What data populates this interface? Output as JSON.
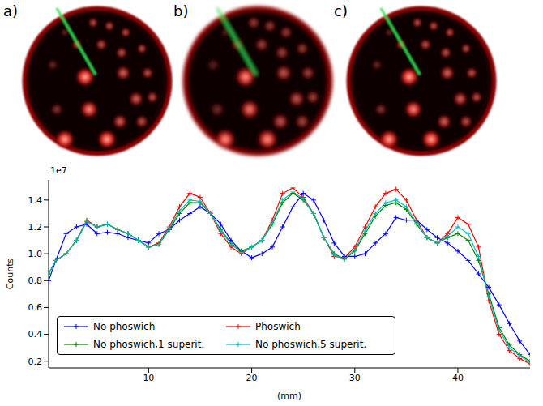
{
  "panels": [
    {
      "label": "a)"
    },
    {
      "label": "b)"
    },
    {
      "label": "c)"
    }
  ],
  "chart_data": {
    "type": "line",
    "x_label": "(mm)",
    "y_label": "Counts",
    "y_offset_text": "1e7",
    "x": [
      0.3,
      1,
      2,
      3,
      4,
      5,
      6,
      7,
      8,
      9,
      10,
      11,
      12,
      13,
      14,
      15,
      16,
      17,
      18,
      19,
      20,
      21,
      22,
      23,
      24,
      25,
      26,
      27,
      28,
      29,
      30,
      31,
      32,
      33,
      34,
      35,
      36,
      37,
      38,
      39,
      40,
      41,
      42,
      43,
      44,
      45,
      46,
      47
    ],
    "xlim": [
      0.3,
      47
    ],
    "xticks": [
      10,
      20,
      30,
      40
    ],
    "ylim": [
      0.15,
      1.55
    ],
    "yticks": [
      0.2,
      0.4,
      0.6,
      0.8,
      1.0,
      1.2,
      1.4
    ],
    "legend": "lower left",
    "grid": false,
    "series": [
      {
        "name": "No phoswich",
        "color": "#0000ff",
        "marker": "plus",
        "values": [
          0.8,
          0.95,
          1.15,
          1.2,
          1.22,
          1.15,
          1.16,
          1.15,
          1.12,
          1.1,
          1.08,
          1.15,
          1.18,
          1.25,
          1.3,
          1.35,
          1.3,
          1.22,
          1.1,
          1.02,
          0.97,
          1.0,
          1.05,
          1.2,
          1.35,
          1.45,
          1.4,
          1.25,
          1.08,
          0.98,
          0.98,
          1.0,
          1.08,
          1.15,
          1.27,
          1.25,
          1.25,
          1.18,
          1.12,
          1.08,
          1.02,
          0.95,
          0.85,
          0.75,
          0.62,
          0.48,
          0.35,
          0.25
        ]
      },
      {
        "name": "Phoswich",
        "color": "#ff0000",
        "marker": "plus",
        "values": [
          0.85,
          0.95,
          1.0,
          1.1,
          1.25,
          1.2,
          1.22,
          1.18,
          1.15,
          1.1,
          1.05,
          1.08,
          1.2,
          1.35,
          1.45,
          1.42,
          1.3,
          1.15,
          1.05,
          1.0,
          1.05,
          1.1,
          1.25,
          1.45,
          1.49,
          1.42,
          1.3,
          1.12,
          0.98,
          0.97,
          1.05,
          1.2,
          1.35,
          1.45,
          1.48,
          1.4,
          1.25,
          1.12,
          1.08,
          1.15,
          1.27,
          1.22,
          1.05,
          0.65,
          0.4,
          0.28,
          0.22,
          0.18
        ]
      },
      {
        "name": "No phoswich,1 superit.",
        "color": "#008000",
        "marker": "plus",
        "values": [
          0.85,
          0.95,
          1.0,
          1.1,
          1.24,
          1.2,
          1.22,
          1.18,
          1.15,
          1.1,
          1.05,
          1.07,
          1.18,
          1.3,
          1.38,
          1.38,
          1.3,
          1.18,
          1.08,
          1.02,
          1.05,
          1.1,
          1.22,
          1.38,
          1.45,
          1.4,
          1.3,
          1.12,
          1.0,
          0.96,
          1.02,
          1.15,
          1.28,
          1.36,
          1.38,
          1.33,
          1.22,
          1.12,
          1.08,
          1.12,
          1.15,
          1.1,
          0.95,
          0.7,
          0.45,
          0.32,
          0.25,
          0.2
        ]
      },
      {
        "name": "No phoswich,5 superit.",
        "color": "#00bfbf",
        "marker": "plus",
        "values": [
          0.85,
          0.95,
          1.0,
          1.1,
          1.24,
          1.2,
          1.22,
          1.18,
          1.15,
          1.1,
          1.05,
          1.07,
          1.19,
          1.32,
          1.4,
          1.39,
          1.3,
          1.17,
          1.07,
          1.01,
          1.05,
          1.1,
          1.23,
          1.4,
          1.46,
          1.41,
          1.3,
          1.12,
          0.99,
          0.96,
          1.03,
          1.17,
          1.3,
          1.38,
          1.4,
          1.35,
          1.23,
          1.12,
          1.08,
          1.13,
          1.2,
          1.15,
          0.98,
          0.68,
          0.43,
          0.3,
          0.24,
          0.19
        ]
      }
    ]
  }
}
